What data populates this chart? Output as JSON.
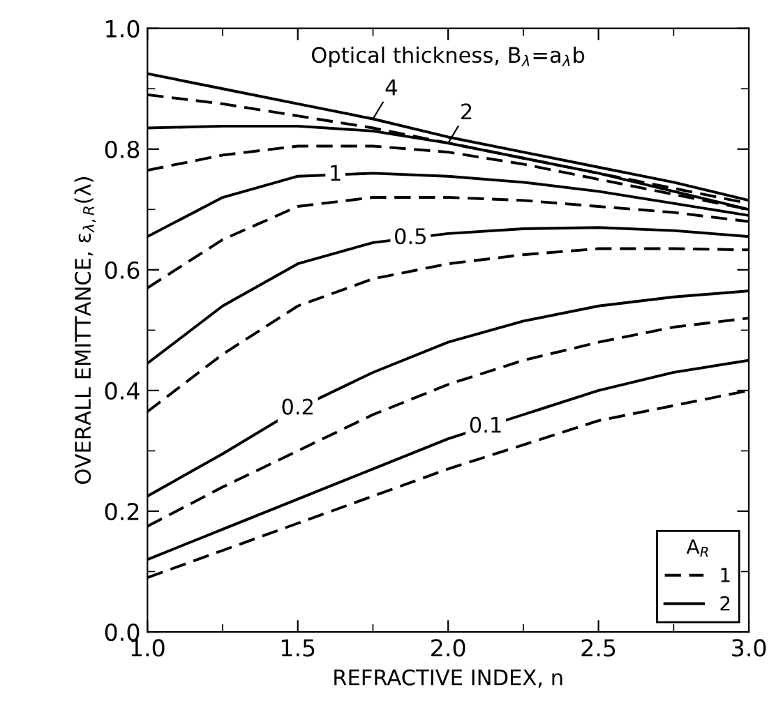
{
  "chart_data": {
    "type": "line",
    "xlabel": "REFRACTIVE INDEX, n",
    "ylabel": "OVERALL EMITTANCE, ε$_{λ,R}$(λ)",
    "legend_title": "A$_{R}$",
    "legend": "bottom right",
    "grid": false,
    "marker": "none",
    "x": [
      1.0,
      1.25,
      1.5,
      1.75,
      2.0,
      2.25,
      2.5,
      2.75,
      3.0
    ],
    "xlim": [
      1.0,
      3.0
    ],
    "xticks": [
      {
        "value": 1.0,
        "label": "1.0"
      },
      1.5,
      {
        "value": 2.0,
        "label": "2.0"
      },
      2.5,
      {
        "value": 3.0,
        "label": "3.0"
      }
    ],
    "ylim": [
      0.0,
      1.0
    ],
    "yticks": [
      {
        "value": 0.0,
        "label": "0.0"
      },
      0.2,
      0.4,
      0.6,
      0.8,
      {
        "value": 1.0,
        "label": "1.0"
      }
    ],
    "series": [
      {
        "name": "1",
        "color": "#000000",
        "line_style": "dashed",
        "values": [
          0.89,
          0.875,
          0.855,
          0.835,
          0.81,
          0.785,
          0.76,
          0.735,
          0.71
        ]
      },
      {
        "name": "2",
        "color": "#000000",
        "line_style": "solid",
        "values": [
          0.925,
          0.9,
          0.875,
          0.85,
          0.82,
          0.795,
          0.77,
          0.745,
          0.715
        ]
      },
      {
        "color": "#000000",
        "line_style": "dashed",
        "values": [
          0.765,
          0.79,
          0.805,
          0.805,
          0.795,
          0.775,
          0.75,
          0.725,
          0.7
        ]
      },
      {
        "color": "#000000",
        "line_style": "solid",
        "values": [
          0.835,
          0.838,
          0.838,
          0.83,
          0.81,
          0.785,
          0.76,
          0.73,
          0.7
        ]
      },
      {
        "color": "#000000",
        "line_style": "dashed",
        "values": [
          0.57,
          0.65,
          0.705,
          0.72,
          0.72,
          0.715,
          0.705,
          0.695,
          0.68
        ]
      },
      {
        "color": "#000000",
        "line_style": "solid",
        "values": [
          0.655,
          0.72,
          0.755,
          0.76,
          0.755,
          0.745,
          0.73,
          0.71,
          0.69
        ]
      },
      {
        "color": "#000000",
        "line_style": "dashed",
        "values": [
          0.365,
          0.46,
          0.54,
          0.585,
          0.61,
          0.625,
          0.635,
          0.635,
          0.633
        ]
      },
      {
        "color": "#000000",
        "line_style": "solid",
        "values": [
          0.445,
          0.54,
          0.61,
          0.645,
          0.66,
          0.668,
          0.67,
          0.665,
          0.655
        ]
      },
      {
        "color": "#000000",
        "line_style": "dashed",
        "values": [
          0.175,
          0.24,
          0.3,
          0.36,
          0.41,
          0.45,
          0.48,
          0.505,
          0.52
        ]
      },
      {
        "color": "#000000",
        "line_style": "solid",
        "values": [
          0.225,
          0.295,
          0.37,
          0.43,
          0.48,
          0.515,
          0.54,
          0.555,
          0.565
        ]
      },
      {
        "color": "#000000",
        "line_style": "dashed",
        "values": [
          0.09,
          0.135,
          0.18,
          0.225,
          0.27,
          0.31,
          0.35,
          0.375,
          0.4
        ]
      },
      {
        "color": "#000000",
        "line_style": "solid",
        "values": [
          0.12,
          0.17,
          0.22,
          0.27,
          0.32,
          0.36,
          0.4,
          0.43,
          0.45
        ]
      }
    ],
    "annotations": [
      "Optical thickness, B$_{λ}$=a$_{λ}$b",
      {
        "text": "4",
        "x": 1.75,
        "y": 0.85
      },
      {
        "text": "2",
        "x": 2.0,
        "y": 0.81
      },
      {
        "text": "1",
        "x": 1.625,
        "y": 0.7575
      },
      {
        "text": "0.5",
        "x": 1.875,
        "y": 0.6525
      },
      {
        "text": "0.2",
        "x": 1.5,
        "y": 0.37
      },
      {
        "text": "0.1",
        "x": 2.125,
        "y": 0.34
      }
    ]
  }
}
